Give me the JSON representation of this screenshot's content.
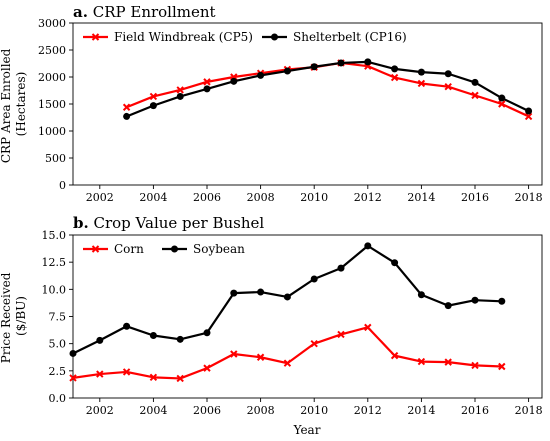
{
  "chart_data": [
    {
      "type": "line",
      "panel_letter": "a.",
      "title": "CRP Enrollment",
      "xlabel": "",
      "ylabel_lines": [
        "CRP Area Enrolled",
        "(Hectares)"
      ],
      "xlim": [
        2001,
        2018.5
      ],
      "ylim": [
        0,
        3000
      ],
      "xticks": [
        2002,
        2004,
        2006,
        2008,
        2010,
        2012,
        2014,
        2016,
        2018
      ],
      "yticks": [
        0,
        500,
        1000,
        1500,
        2000,
        2500,
        3000
      ],
      "legend_position": "top",
      "series": [
        {
          "name": "Field Windbreak (CP5)",
          "color": "#ff0000",
          "marker": "x",
          "x": [
            2003,
            2004,
            2005,
            2006,
            2007,
            2008,
            2009,
            2010,
            2011,
            2012,
            2013,
            2014,
            2015,
            2016,
            2017,
            2018
          ],
          "y": [
            1440,
            1640,
            1760,
            1910,
            2000,
            2070,
            2140,
            2180,
            2260,
            2200,
            1990,
            1880,
            1820,
            1660,
            1500,
            1270
          ]
        },
        {
          "name": "Shelterbelt (CP16)",
          "color": "#000000",
          "marker": "o",
          "x": [
            2003,
            2004,
            2005,
            2006,
            2007,
            2008,
            2009,
            2010,
            2011,
            2012,
            2013,
            2014,
            2015,
            2016,
            2017,
            2018
          ],
          "y": [
            1270,
            1470,
            1640,
            1780,
            1920,
            2030,
            2110,
            2190,
            2260,
            2280,
            2150,
            2090,
            2060,
            1900,
            1610,
            1370
          ]
        }
      ]
    },
    {
      "type": "line",
      "panel_letter": "b.",
      "title": "Crop Value per Bushel",
      "xlabel": "Year",
      "ylabel_lines": [
        "Price Received",
        "($/BU)"
      ],
      "xlim": [
        2001,
        2018.5
      ],
      "ylim": [
        0,
        15
      ],
      "xticks": [
        2002,
        2004,
        2006,
        2008,
        2010,
        2012,
        2014,
        2016,
        2018
      ],
      "yticks": [
        0.0,
        2.5,
        5.0,
        7.5,
        10.0,
        12.5,
        15.0
      ],
      "ytick_labels": [
        "0.0",
        "2.5",
        "5.0",
        "7.5",
        "10.0",
        "12.5",
        "15.0"
      ],
      "legend_position": "top-left",
      "series": [
        {
          "name": "Corn",
          "color": "#ff0000",
          "marker": "x",
          "x": [
            2001,
            2002,
            2003,
            2004,
            2005,
            2006,
            2007,
            2008,
            2009,
            2010,
            2011,
            2012,
            2013,
            2014,
            2015,
            2016,
            2017
          ],
          "y": [
            1.85,
            2.2,
            2.4,
            1.9,
            1.8,
            2.75,
            4.05,
            3.75,
            3.2,
            5.0,
            5.85,
            6.5,
            3.9,
            3.35,
            3.3,
            3.0,
            2.9
          ]
        },
        {
          "name": "Soybean",
          "color": "#000000",
          "marker": "o",
          "x": [
            2001,
            2002,
            2003,
            2004,
            2005,
            2006,
            2007,
            2008,
            2009,
            2010,
            2011,
            2012,
            2013,
            2014,
            2015,
            2016,
            2017
          ],
          "y": [
            4.1,
            5.3,
            6.6,
            5.75,
            5.4,
            6.0,
            9.65,
            9.75,
            9.3,
            10.95,
            11.95,
            14.0,
            12.45,
            9.5,
            8.5,
            9.0,
            8.9
          ]
        }
      ]
    }
  ]
}
